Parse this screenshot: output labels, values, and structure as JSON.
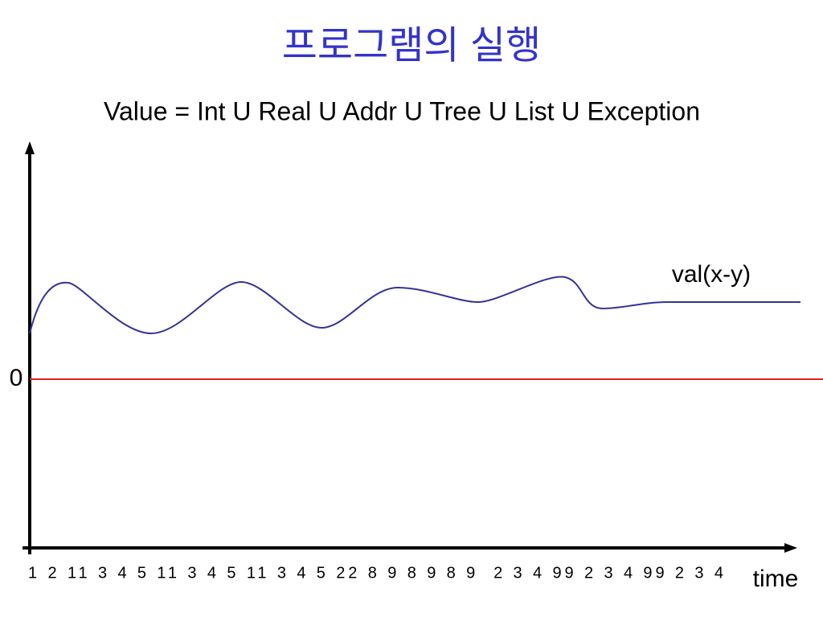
{
  "header": {
    "title": "프로그램의 실행",
    "subtitle": "Value = Int U Real U Addr U Tree U List U Exception"
  },
  "diagram": {
    "curve_label": "val(x-y)",
    "zero_label": "0",
    "x_axis_sequence": "1 2 11 3 4 5 11 3 4 5 11 3 4 5 22 8 9 8 9 8 9  2 3 4 99 2 3 4 99 2 3 4",
    "x_axis_label": "time"
  }
}
